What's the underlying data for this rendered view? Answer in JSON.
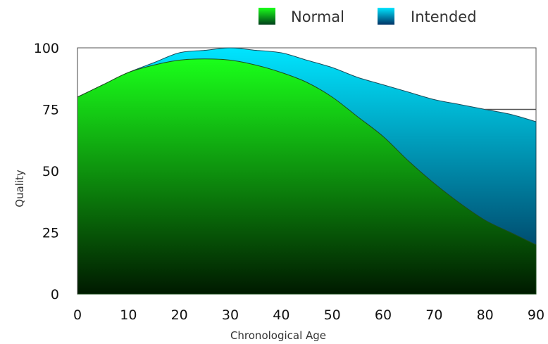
{
  "chart_data": {
    "type": "area",
    "xlabel": "Chronological Age",
    "ylabel": "Quality",
    "xlim": [
      0,
      90
    ],
    "ylim": [
      0,
      100
    ],
    "x_ticks": [
      0,
      10,
      20,
      30,
      40,
      50,
      60,
      70,
      80,
      90
    ],
    "y_ticks": [
      0,
      25,
      50,
      75,
      100
    ],
    "legend_position": "top-right",
    "grid": false,
    "series": [
      {
        "name": "Normal",
        "colors": [
          "#1aff1a",
          "#001a00"
        ],
        "x": [
          0,
          5,
          10,
          15,
          20,
          25,
          30,
          35,
          40,
          45,
          50,
          55,
          60,
          65,
          70,
          75,
          80,
          85,
          90
        ],
        "values": [
          80,
          85,
          90,
          93,
          95,
          95.5,
          95,
          93,
          90,
          86,
          80,
          72,
          64,
          54,
          45,
          37,
          30,
          25,
          20
        ]
      },
      {
        "name": "Intended",
        "colors": [
          "#00e5ff",
          "#00284d"
        ],
        "x": [
          0,
          5,
          10,
          15,
          20,
          25,
          30,
          35,
          40,
          45,
          50,
          55,
          60,
          65,
          70,
          75,
          80,
          85,
          90
        ],
        "values": [
          80,
          85,
          90,
          94,
          98,
          99,
          100,
          99,
          98,
          95,
          92,
          88,
          85,
          82,
          79,
          77,
          75,
          73,
          70
        ]
      }
    ],
    "reference_line": {
      "y": 75,
      "x_from": 80,
      "x_to": 90,
      "color": "#555555"
    }
  }
}
